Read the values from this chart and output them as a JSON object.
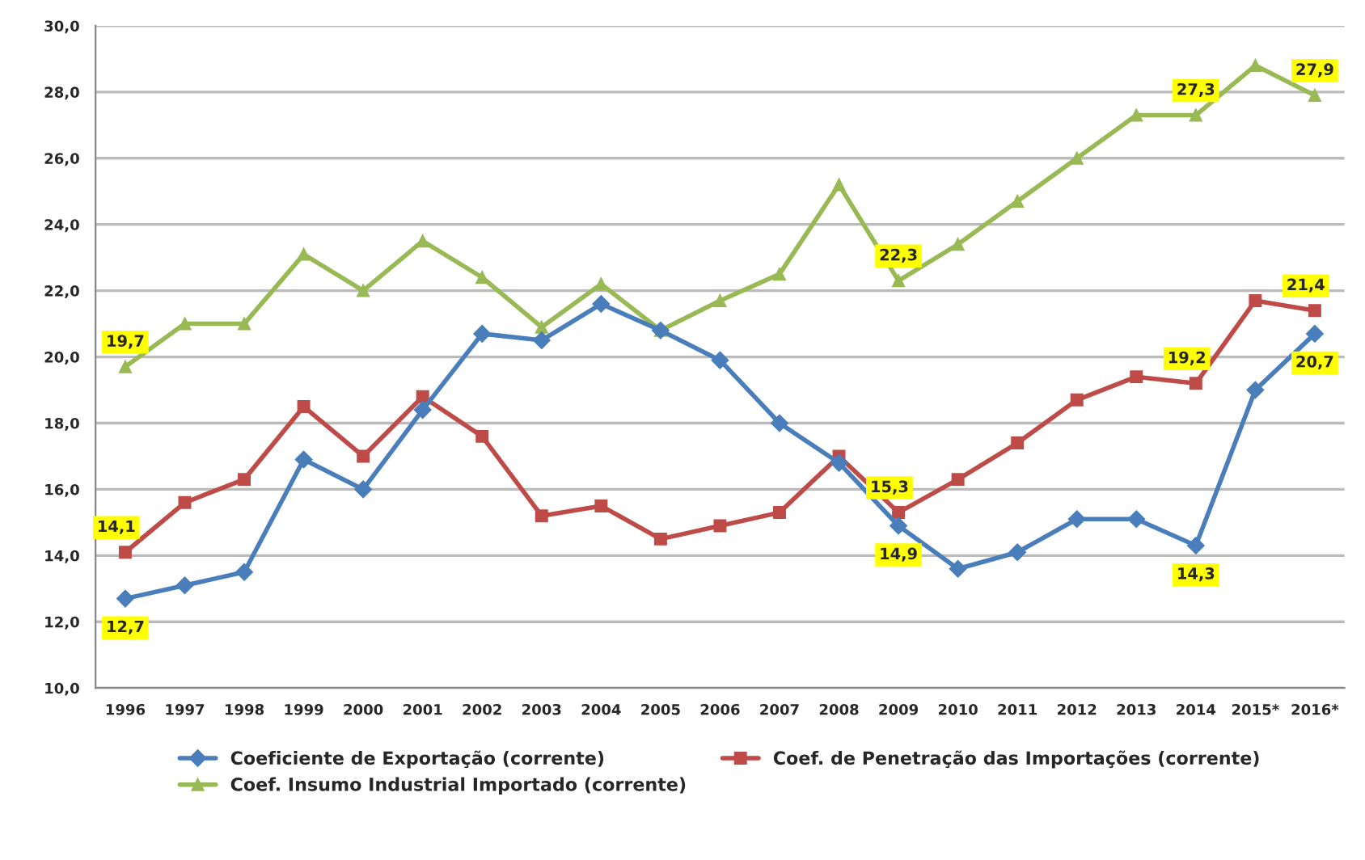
{
  "chart_data": {
    "type": "line",
    "categories": [
      "1996",
      "1997",
      "1998",
      "1999",
      "2000",
      "2001",
      "2002",
      "2003",
      "2004",
      "2005",
      "2006",
      "2007",
      "2008",
      "2009",
      "2010",
      "2011",
      "2012",
      "2013",
      "2014",
      "2015*",
      "2016*"
    ],
    "series": [
      {
        "name": "Coeficiente de Exportação (corrente)",
        "color": "#4a7ebb",
        "marker": "diamond",
        "values": [
          12.7,
          13.1,
          13.5,
          16.9,
          16.0,
          18.4,
          20.7,
          20.5,
          21.6,
          20.8,
          19.9,
          18.0,
          16.8,
          14.9,
          13.6,
          14.1,
          15.1,
          15.1,
          14.3,
          19.0,
          20.7
        ],
        "value_labels": [
          "12,7",
          null,
          null,
          null,
          null,
          null,
          null,
          null,
          null,
          null,
          null,
          null,
          null,
          "14,9",
          null,
          null,
          null,
          null,
          "14,3",
          null,
          "20,7"
        ]
      },
      {
        "name": "Coef. de Penetração das Importações (corrente)",
        "color": "#be4b48",
        "marker": "square",
        "values": [
          14.1,
          15.6,
          16.3,
          18.5,
          17.0,
          18.8,
          17.6,
          15.2,
          15.5,
          14.5,
          14.9,
          15.3,
          17.0,
          15.3,
          16.3,
          17.4,
          18.7,
          19.4,
          19.2,
          21.7,
          21.4
        ],
        "value_labels": [
          "14,1",
          null,
          null,
          null,
          null,
          null,
          null,
          null,
          null,
          null,
          null,
          null,
          null,
          "15,3",
          null,
          null,
          null,
          null,
          "19,2",
          null,
          "21,4"
        ]
      },
      {
        "name": "Coef. Insumo Industrial Importado (corrente)",
        "color": "#98b954",
        "marker": "triangle",
        "values": [
          19.7,
          21.0,
          21.0,
          23.1,
          22.0,
          23.5,
          22.4,
          20.9,
          22.2,
          20.8,
          21.7,
          22.5,
          25.2,
          22.3,
          23.4,
          24.7,
          26.0,
          27.3,
          27.3,
          28.8,
          27.9
        ],
        "value_labels": [
          "19,7",
          null,
          null,
          null,
          null,
          null,
          null,
          null,
          null,
          null,
          null,
          null,
          null,
          "22,3",
          null,
          null,
          null,
          null,
          "27,3",
          null,
          "27,9"
        ]
      }
    ],
    "ylim": [
      10,
      30
    ],
    "yticks": [
      {
        "value": 10,
        "label": "10,0"
      },
      {
        "value": 12,
        "label": "12,0"
      },
      {
        "value": 14,
        "label": "14,0"
      },
      {
        "value": 16,
        "label": "16,0"
      },
      {
        "value": 18,
        "label": "18,0"
      },
      {
        "value": 20,
        "label": "20,0"
      },
      {
        "value": 22,
        "label": "22,0"
      },
      {
        "value": 24,
        "label": "24,0"
      },
      {
        "value": 26,
        "label": "26,0"
      },
      {
        "value": 28,
        "label": "28,0"
      },
      {
        "value": 30,
        "label": "30,0"
      }
    ],
    "grid": "y",
    "legend": "bottom",
    "line_style": "solid"
  }
}
